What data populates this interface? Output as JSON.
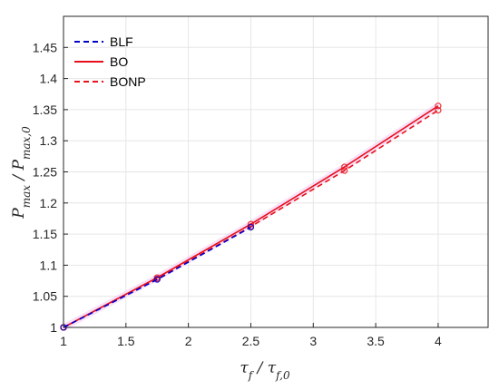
{
  "chart_data": {
    "type": "line",
    "xlabel": "τf / τf,0",
    "ylabel": "Pmax / Pmax,0",
    "xlim": [
      1,
      4.4
    ],
    "ylim": [
      1,
      1.5
    ],
    "x_ticks": [
      1,
      1.5,
      2,
      2.5,
      3,
      3.5,
      4
    ],
    "y_ticks": [
      1,
      1.05,
      1.1,
      1.15,
      1.2,
      1.25,
      1.3,
      1.35,
      1.4,
      1.45
    ],
    "x_tick_labels": [
      "1",
      "1.5",
      "2",
      "2.5",
      "3",
      "3.5",
      "4"
    ],
    "y_tick_labels": [
      "1",
      "1.05",
      "1.1",
      "1.15",
      "1.2",
      "1.25",
      "1.3",
      "1.35",
      "1.4",
      "1.45"
    ],
    "grid": true,
    "legend_position": "top-left",
    "series": [
      {
        "name": "BLF",
        "color": "#0000cc",
        "style": "dashed",
        "x": [
          1,
          1.75,
          2.5
        ],
        "y": [
          1.0,
          1.077,
          1.161
        ]
      },
      {
        "name": "BO",
        "color": "#e8101a",
        "style": "solid",
        "x": [
          1,
          1.75,
          2.5,
          3.25,
          4.0
        ],
        "y": [
          1.0,
          1.08,
          1.166,
          1.258,
          1.356
        ]
      },
      {
        "name": "BONP",
        "color": "#e8101a",
        "style": "dashed",
        "x": [
          1,
          1.75,
          2.5,
          3.25,
          4.0
        ],
        "y": [
          1.0,
          1.078,
          1.162,
          1.252,
          1.349
        ]
      }
    ]
  }
}
